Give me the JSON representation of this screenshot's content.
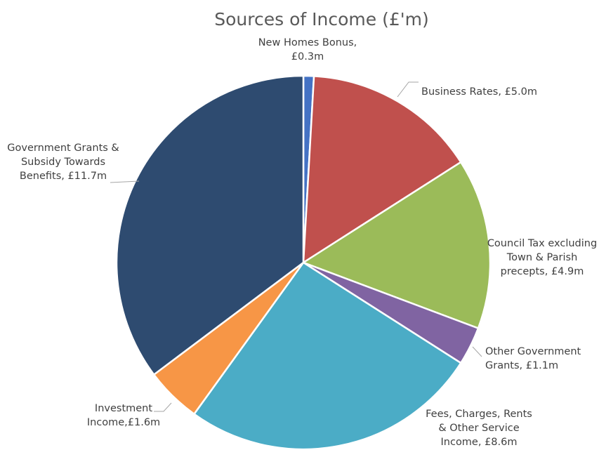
{
  "chart_data": {
    "type": "pie",
    "title": "Sources of Income (£'m)",
    "unit": "£m",
    "slices": [
      {
        "name": "New Homes Bonus",
        "value": 0.3,
        "label_lines": [
          "New Homes Bonus,",
          "£0.3m"
        ],
        "color": "#4472c4"
      },
      {
        "name": "Business Rates",
        "value": 5.0,
        "label_lines": [
          "Business Rates, £5.0m"
        ],
        "color": "#c0504d"
      },
      {
        "name": "Council Tax excluding Town & Parish precepts",
        "value": 4.9,
        "label_lines": [
          "Council Tax excluding",
          "Town & Parish",
          "precepts, £4.9m"
        ],
        "color": "#9bbb59"
      },
      {
        "name": "Other Government Grants",
        "value": 1.1,
        "label_lines": [
          "Other Government",
          "Grants, £1.1m"
        ],
        "color": "#8064a2"
      },
      {
        "name": "Fees, Charges, Rents & Other Service Income",
        "value": 8.6,
        "label_lines": [
          "Fees, Charges, Rents",
          "& Other Service",
          "Income, £8.6m"
        ],
        "color": "#4bacc6"
      },
      {
        "name": "Investment Income",
        "value": 1.6,
        "label_lines": [
          "Investment",
          "Income,£1.6m"
        ],
        "color": "#f79646"
      },
      {
        "name": "Government Grants & Subsidy Towards Benefits",
        "value": 11.7,
        "label_lines": [
          "Government Grants &",
          "Subsidy Towards",
          "Benefits, £11.7m"
        ],
        "color": "#2e4b70"
      }
    ],
    "legend": "none",
    "data_labels": "outside with leader lines"
  }
}
